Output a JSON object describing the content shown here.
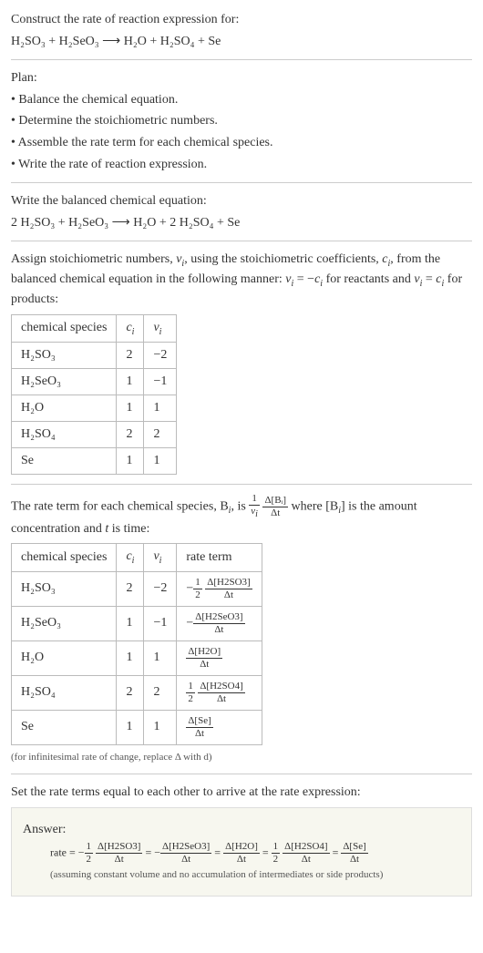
{
  "intro": {
    "line1": "Construct the rate of reaction expression for:",
    "eq": "H₂SO₃ + H₂SeO₃ ⟶ H₂O + H₂SO₄ + Se"
  },
  "plan": {
    "heading": "Plan:",
    "items": [
      "• Balance the chemical equation.",
      "• Determine the stoichiometric numbers.",
      "• Assemble the rate term for each chemical species.",
      "• Write the rate of reaction expression."
    ]
  },
  "balanced": {
    "heading": "Write the balanced chemical equation:",
    "eq": "2 H₂SO₃ + H₂SeO₃ ⟶ H₂O + 2 H₂SO₄ + Se"
  },
  "assign": {
    "text_parts": {
      "a": "Assign stoichiometric numbers, ",
      "nu_i": "ν",
      "b": ", using the stoichiometric coefficients, ",
      "c_i": "c",
      "c": ", from the balanced chemical equation in the following manner: ",
      "d": " = −",
      "e": " for reactants and ",
      "f": " = ",
      "g": " for products:"
    },
    "table1": {
      "headers": [
        "chemical species",
        "cᵢ",
        "νᵢ"
      ],
      "rows": [
        [
          "H₂SO₃",
          "2",
          "−2"
        ],
        [
          "H₂SeO₃",
          "1",
          "−1"
        ],
        [
          "H₂O",
          "1",
          "1"
        ],
        [
          "H₂SO₄",
          "2",
          "2"
        ],
        [
          "Se",
          "1",
          "1"
        ]
      ]
    }
  },
  "rateterm": {
    "text_a": "The rate term for each chemical species, B",
    "text_b": ", is ",
    "text_c": " where [B",
    "text_d": "] is the amount concentration and ",
    "t": "t",
    "text_e": " is time:",
    "frac1": {
      "num": "1",
      "den": "νᵢ"
    },
    "frac2": {
      "num": "Δ[Bᵢ]",
      "den": "Δt"
    },
    "table2": {
      "headers": [
        "chemical species",
        "cᵢ",
        "νᵢ",
        "rate term"
      ],
      "rows": [
        {
          "sp": "H₂SO₃",
          "c": "2",
          "nu": "−2",
          "pre": "−",
          "coef_num": "1",
          "coef_den": "2",
          "num": "Δ[H2SO3]",
          "den": "Δt"
        },
        {
          "sp": "H₂SeO₃",
          "c": "1",
          "nu": "−1",
          "pre": "−",
          "coef_num": "",
          "coef_den": "",
          "num": "Δ[H2SeO3]",
          "den": "Δt"
        },
        {
          "sp": "H₂O",
          "c": "1",
          "nu": "1",
          "pre": "",
          "coef_num": "",
          "coef_den": "",
          "num": "Δ[H2O]",
          "den": "Δt"
        },
        {
          "sp": "H₂SO₄",
          "c": "2",
          "nu": "2",
          "pre": "",
          "coef_num": "1",
          "coef_den": "2",
          "num": "Δ[H2SO4]",
          "den": "Δt"
        },
        {
          "sp": "Se",
          "c": "1",
          "nu": "1",
          "pre": "",
          "coef_num": "",
          "coef_den": "",
          "num": "Δ[Se]",
          "den": "Δt"
        }
      ]
    },
    "note": "(for infinitesimal rate of change, replace Δ with d)"
  },
  "setequal": "Set the rate terms equal to each other to arrive at the rate expression:",
  "answer": {
    "label": "Answer:",
    "rate_prefix": "rate = ",
    "terms": [
      {
        "pre": "−",
        "coef_num": "1",
        "coef_den": "2",
        "num": "Δ[H2SO3]",
        "den": "Δt"
      },
      {
        "pre": "−",
        "coef_num": "",
        "coef_den": "",
        "num": "Δ[H2SeO3]",
        "den": "Δt"
      },
      {
        "pre": "",
        "coef_num": "",
        "coef_den": "",
        "num": "Δ[H2O]",
        "den": "Δt"
      },
      {
        "pre": "",
        "coef_num": "1",
        "coef_den": "2",
        "num": "Δ[H2SO4]",
        "den": "Δt"
      },
      {
        "pre": "",
        "coef_num": "",
        "coef_den": "",
        "num": "Δ[Se]",
        "den": "Δt"
      }
    ],
    "note": "(assuming constant volume and no accumulation of intermediates or side products)"
  }
}
